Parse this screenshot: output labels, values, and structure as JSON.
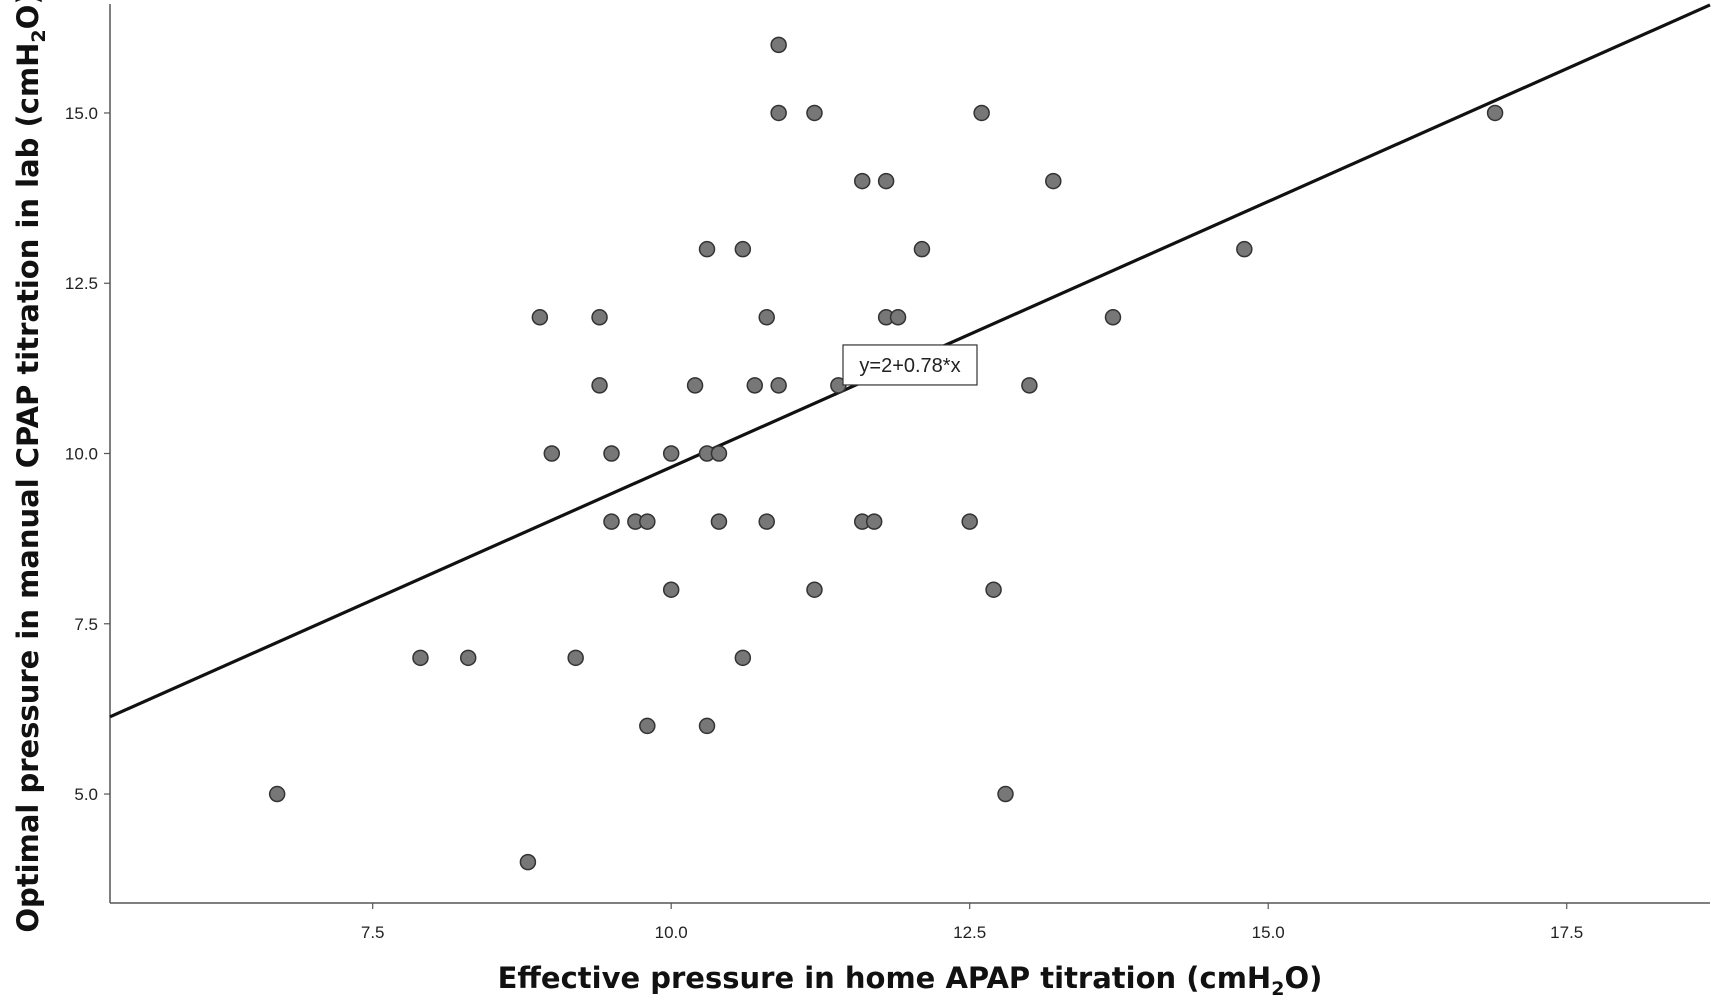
{
  "chart_data": {
    "type": "scatter",
    "title": "",
    "xlabel": "Effective pressure in home APAP titration (cmH",
    "xlabel_sub": "2",
    "xlabel_end": "O)",
    "ylabel": "Optimal pressure in manual CPAP titration in lab (cmH",
    "ylabel_sub": "2",
    "ylabel_end": "O)",
    "xlim": [
      5.3,
      18.7
    ],
    "ylim": [
      3.4,
      16.6
    ],
    "xticks": [
      7.5,
      10.0,
      12.5,
      15.0,
      17.5
    ],
    "yticks": [
      5.0,
      7.5,
      10.0,
      12.5,
      15.0
    ],
    "xtick_labels": [
      "7.5",
      "10.0",
      "12.5",
      "15.0",
      "17.5"
    ],
    "ytick_labels": [
      "5.0",
      "7.5",
      "10.0",
      "12.5",
      "15.0"
    ],
    "grid": false,
    "fit_line": {
      "intercept": 2,
      "slope": 0.78,
      "label": "y=2+0.78*x",
      "label_at": [
        12.0,
        11.3
      ]
    },
    "points": [
      [
        6.7,
        5
      ],
      [
        7.9,
        7
      ],
      [
        8.3,
        7
      ],
      [
        8.8,
        4
      ],
      [
        8.9,
        12
      ],
      [
        9.0,
        10
      ],
      [
        9.2,
        7
      ],
      [
        9.4,
        12
      ],
      [
        9.4,
        11
      ],
      [
        9.5,
        10
      ],
      [
        9.5,
        9
      ],
      [
        9.7,
        9
      ],
      [
        9.8,
        9
      ],
      [
        9.8,
        6
      ],
      [
        10.0,
        10
      ],
      [
        10.0,
        8
      ],
      [
        10.2,
        11
      ],
      [
        10.3,
        13
      ],
      [
        10.3,
        10
      ],
      [
        10.3,
        6
      ],
      [
        10.4,
        10
      ],
      [
        10.4,
        9
      ],
      [
        10.6,
        13
      ],
      [
        10.6,
        7
      ],
      [
        10.7,
        11
      ],
      [
        10.8,
        12
      ],
      [
        10.8,
        9
      ],
      [
        10.9,
        16
      ],
      [
        10.9,
        15
      ],
      [
        10.9,
        11
      ],
      [
        11.2,
        15
      ],
      [
        11.2,
        8
      ],
      [
        11.4,
        11
      ],
      [
        11.6,
        14
      ],
      [
        11.6,
        9
      ],
      [
        11.7,
        9
      ],
      [
        11.8,
        14
      ],
      [
        11.8,
        12
      ],
      [
        11.9,
        12
      ],
      [
        12.1,
        13
      ],
      [
        12.5,
        9
      ],
      [
        12.6,
        15
      ],
      [
        12.7,
        8
      ],
      [
        12.8,
        5
      ],
      [
        13.0,
        11
      ],
      [
        13.2,
        14
      ],
      [
        13.7,
        12
      ],
      [
        14.8,
        13
      ],
      [
        16.9,
        15
      ]
    ],
    "marker_color": "#777777",
    "marker_edge": "#333333",
    "line_color": "#111111"
  }
}
